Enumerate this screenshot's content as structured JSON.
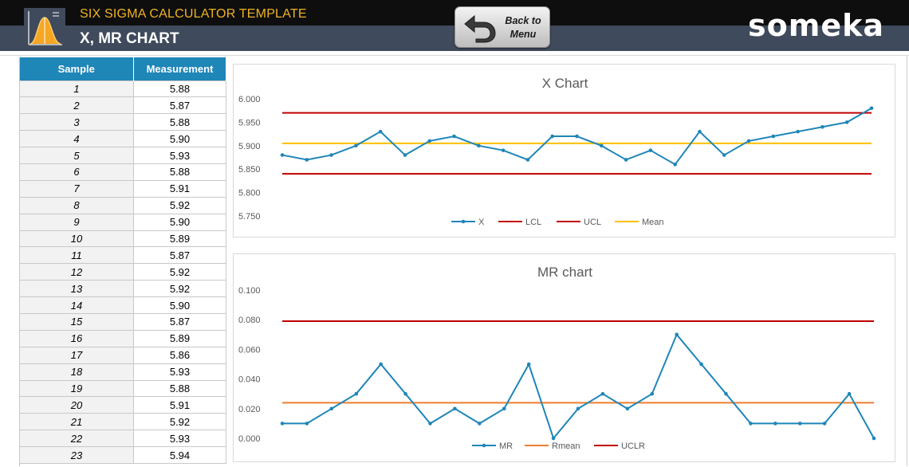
{
  "header": {
    "app_title": "SIX SIGMA CALCULATOR TEMPLATE",
    "sub_title": "X, MR CHART",
    "back_button_line1": "Back to",
    "back_button_line2": "Menu",
    "brand": "someka",
    "logo_icon": "bell-curve-icon",
    "back_icon": "back-arrow-icon"
  },
  "table": {
    "headers": [
      "Sample",
      "Measurement"
    ],
    "rows": [
      {
        "sample": "1",
        "measurement": "5.88"
      },
      {
        "sample": "2",
        "measurement": "5.87"
      },
      {
        "sample": "3",
        "measurement": "5.88"
      },
      {
        "sample": "4",
        "measurement": "5.90"
      },
      {
        "sample": "5",
        "measurement": "5.93"
      },
      {
        "sample": "6",
        "measurement": "5.88"
      },
      {
        "sample": "7",
        "measurement": "5.91"
      },
      {
        "sample": "8",
        "measurement": "5.92"
      },
      {
        "sample": "9",
        "measurement": "5.90"
      },
      {
        "sample": "10",
        "measurement": "5.89"
      },
      {
        "sample": "11",
        "measurement": "5.87"
      },
      {
        "sample": "12",
        "measurement": "5.92"
      },
      {
        "sample": "13",
        "measurement": "5.92"
      },
      {
        "sample": "14",
        "measurement": "5.90"
      },
      {
        "sample": "15",
        "measurement": "5.87"
      },
      {
        "sample": "16",
        "measurement": "5.89"
      },
      {
        "sample": "17",
        "measurement": "5.86"
      },
      {
        "sample": "18",
        "measurement": "5.93"
      },
      {
        "sample": "19",
        "measurement": "5.88"
      },
      {
        "sample": "20",
        "measurement": "5.91"
      },
      {
        "sample": "21",
        "measurement": "5.92"
      },
      {
        "sample": "22",
        "measurement": "5.93"
      },
      {
        "sample": "23",
        "measurement": "5.94"
      }
    ]
  },
  "colors": {
    "header_dark": "#0e0e0e",
    "header_slate": "#3f4a5c",
    "title_gold": "#f0b323",
    "table_header": "#1f86b8",
    "series_blue": "#1f86b8",
    "limit_red": "#c00000",
    "mean_yellow": "#ffc000",
    "rmean_orange": "#ed7d31"
  },
  "chart_data": [
    {
      "type": "line",
      "title": "X Chart",
      "ylim": [
        5.75,
        6.0
      ],
      "yticks": [
        "6.000",
        "5.950",
        "5.900",
        "5.850",
        "5.800",
        "5.750"
      ],
      "ytick_values": [
        6.0,
        5.95,
        5.9,
        5.85,
        5.8,
        5.75
      ],
      "x": [
        1,
        2,
        3,
        4,
        5,
        6,
        7,
        8,
        9,
        10,
        11,
        12,
        13,
        14,
        15,
        16,
        17,
        18,
        19,
        20,
        21,
        22,
        23,
        24,
        25
      ],
      "series": [
        {
          "name": "X",
          "color": "#1f86b8",
          "markers": true,
          "values": [
            5.88,
            5.87,
            5.88,
            5.9,
            5.93,
            5.88,
            5.91,
            5.92,
            5.9,
            5.89,
            5.87,
            5.92,
            5.92,
            5.9,
            5.87,
            5.89,
            5.86,
            5.93,
            5.88,
            5.91,
            5.92,
            5.93,
            5.94,
            5.95,
            5.98
          ]
        },
        {
          "name": "LCL",
          "color": "#c00000",
          "constant": 5.84
        },
        {
          "name": "UCL",
          "color": "#c00000",
          "constant": 5.97
        },
        {
          "name": "Mean",
          "color": "#ffc000",
          "constant": 5.905
        }
      ],
      "legend": "bottom",
      "grid": false
    },
    {
      "type": "line",
      "title": "MR chart",
      "ylim": [
        0,
        0.1
      ],
      "yticks": [
        "0.100",
        "0.080",
        "0.060",
        "0.040",
        "0.020",
        "0.000"
      ],
      "ytick_values": [
        0.1,
        0.08,
        0.06,
        0.04,
        0.02,
        0.0
      ],
      "x": [
        1,
        2,
        3,
        4,
        5,
        6,
        7,
        8,
        9,
        10,
        11,
        12,
        13,
        14,
        15,
        16,
        17,
        18,
        19,
        20,
        21,
        22,
        23,
        24,
        25
      ],
      "series": [
        {
          "name": "MR",
          "color": "#1f86b8",
          "markers": true,
          "values": [
            0.01,
            0.01,
            0.02,
            0.03,
            0.05,
            0.03,
            0.01,
            0.02,
            0.01,
            0.02,
            0.05,
            0.0,
            0.02,
            0.03,
            0.02,
            0.03,
            0.07,
            0.05,
            0.03,
            0.01,
            0.01,
            0.01,
            0.01,
            0.03,
            0.0
          ]
        },
        {
          "name": "Rmean",
          "color": "#ed7d31",
          "constant": 0.024
        },
        {
          "name": "UCLR",
          "color": "#c00000",
          "constant": 0.079
        }
      ],
      "legend": "bottom",
      "grid": false
    }
  ]
}
